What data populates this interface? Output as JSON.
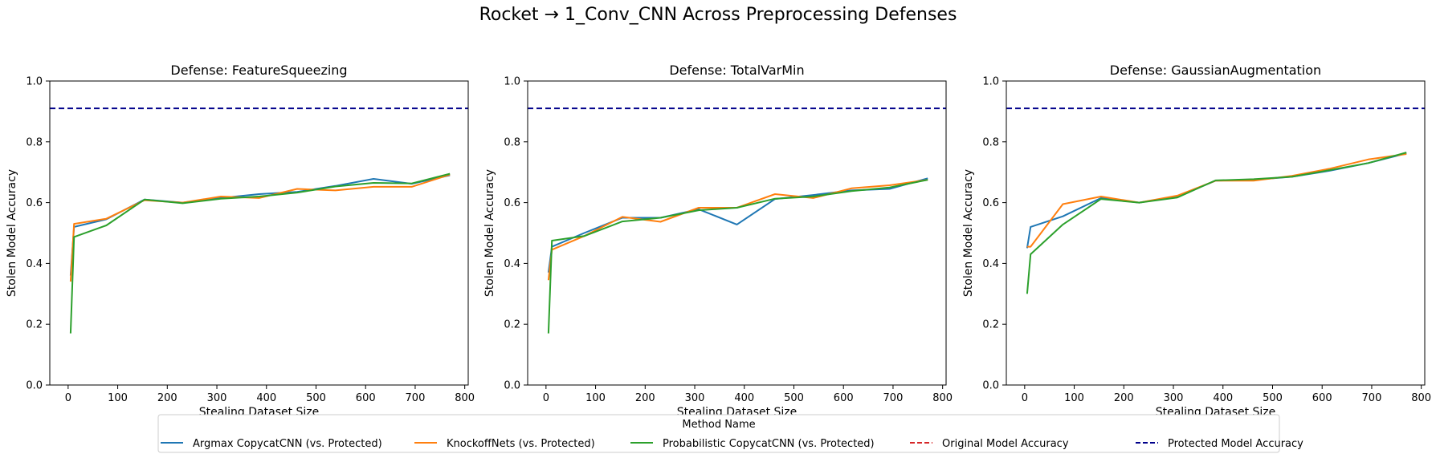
{
  "figure": {
    "title": "Rocket → 1_Conv_CNN Across Preprocessing Defenses"
  },
  "legend": {
    "title": "Method Name",
    "placement": "bottom-center",
    "entries": [
      {
        "label": "Argmax CopycatCNN (vs. Protected)",
        "color": "#1f77b4",
        "style": "solid"
      },
      {
        "label": "KnockoffNets (vs. Protected)",
        "color": "#ff7f0e",
        "style": "solid"
      },
      {
        "label": "Probabilistic CopycatCNN (vs. Protected)",
        "color": "#2ca02c",
        "style": "solid"
      },
      {
        "label": "Original Model Accuracy",
        "color": "#d62728",
        "style": "dashed"
      },
      {
        "label": "Protected Model Accuracy",
        "color": "#00008b",
        "style": "dashed"
      }
    ]
  },
  "chart_data": [
    {
      "type": "line",
      "title": "Defense: FeatureSqueezing",
      "xlabel": "Stealing Dataset Size",
      "ylabel": "Stolen Model Accuracy",
      "xlim": [
        -37,
        807
      ],
      "ylim": [
        0.0,
        1.0
      ],
      "xticks": [
        0,
        100,
        200,
        300,
        400,
        500,
        600,
        700,
        800
      ],
      "yticks": [
        0.0,
        0.2,
        0.4,
        0.6,
        0.8,
        1.0
      ],
      "grid": false,
      "hlines": [
        {
          "name": "Protected Model Accuracy",
          "y": 0.91,
          "color": "#00008b",
          "style": "dashed"
        }
      ],
      "series": [
        {
          "name": "Argmax CopycatCNN (vs. Protected)",
          "color": "#1f77b4",
          "x": [
            5,
            12,
            77,
            154,
            231,
            308,
            385,
            462,
            539,
            616,
            693,
            770
          ],
          "y": [
            0.36,
            0.52,
            0.545,
            0.61,
            0.6,
            0.615,
            0.628,
            0.635,
            0.655,
            0.678,
            0.662,
            0.69
          ]
        },
        {
          "name": "KnockoffNets (vs. Protected)",
          "color": "#ff7f0e",
          "x": [
            5,
            12,
            77,
            154,
            231,
            308,
            385,
            462,
            539,
            616,
            693,
            770
          ],
          "y": [
            0.34,
            0.53,
            0.547,
            0.608,
            0.6,
            0.62,
            0.615,
            0.645,
            0.64,
            0.652,
            0.652,
            0.692
          ]
        },
        {
          "name": "Probabilistic CopycatCNN (vs. Protected)",
          "color": "#2ca02c",
          "x": [
            5,
            12,
            77,
            154,
            231,
            308,
            385,
            462,
            539,
            616,
            693,
            770
          ],
          "y": [
            0.17,
            0.487,
            0.525,
            0.61,
            0.598,
            0.613,
            0.62,
            0.633,
            0.653,
            0.665,
            0.663,
            0.695
          ]
        }
      ]
    },
    {
      "type": "line",
      "title": "Defense: TotalVarMin",
      "xlabel": "Stealing Dataset Size",
      "ylabel": "Stolen Model Accuracy",
      "xlim": [
        -37,
        807
      ],
      "ylim": [
        0.0,
        1.0
      ],
      "xticks": [
        0,
        100,
        200,
        300,
        400,
        500,
        600,
        700,
        800
      ],
      "yticks": [
        0.0,
        0.2,
        0.4,
        0.6,
        0.8,
        1.0
      ],
      "grid": false,
      "hlines": [
        {
          "name": "Protected Model Accuracy",
          "y": 0.91,
          "color": "#00008b",
          "style": "dashed"
        }
      ],
      "series": [
        {
          "name": "Argmax CopycatCNN (vs. Protected)",
          "color": "#1f77b4",
          "x": [
            5,
            12,
            77,
            154,
            231,
            308,
            385,
            462,
            539,
            616,
            693,
            770
          ],
          "y": [
            0.37,
            0.455,
            0.5,
            0.55,
            0.55,
            0.578,
            0.528,
            0.612,
            0.625,
            0.64,
            0.645,
            0.68
          ]
        },
        {
          "name": "KnockoffNets (vs. Protected)",
          "color": "#ff7f0e",
          "x": [
            5,
            12,
            77,
            154,
            231,
            308,
            385,
            462,
            539,
            616,
            693,
            770
          ],
          "y": [
            0.345,
            0.445,
            0.49,
            0.553,
            0.537,
            0.583,
            0.583,
            0.628,
            0.615,
            0.647,
            0.657,
            0.675
          ]
        },
        {
          "name": "Probabilistic CopycatCNN (vs. Protected)",
          "color": "#2ca02c",
          "x": [
            5,
            12,
            77,
            154,
            231,
            308,
            385,
            462,
            539,
            616,
            693,
            770
          ],
          "y": [
            0.17,
            0.475,
            0.49,
            0.538,
            0.55,
            0.575,
            0.583,
            0.613,
            0.62,
            0.638,
            0.65,
            0.675
          ]
        }
      ]
    },
    {
      "type": "line",
      "title": "Defense: GaussianAugmentation",
      "xlabel": "Stealing Dataset Size",
      "ylabel": "Stolen Model Accuracy",
      "xlim": [
        -37,
        807
      ],
      "ylim": [
        0.0,
        1.0
      ],
      "xticks": [
        0,
        100,
        200,
        300,
        400,
        500,
        600,
        700,
        800
      ],
      "yticks": [
        0.0,
        0.2,
        0.4,
        0.6,
        0.8,
        1.0
      ],
      "grid": false,
      "hlines": [
        {
          "name": "Protected Model Accuracy",
          "y": 0.91,
          "color": "#00008b",
          "style": "dashed"
        }
      ],
      "series": [
        {
          "name": "Argmax CopycatCNN (vs. Protected)",
          "color": "#1f77b4",
          "x": [
            5,
            12,
            77,
            154,
            231,
            308,
            385,
            462,
            539,
            616,
            693,
            770
          ],
          "y": [
            0.45,
            0.52,
            0.555,
            0.615,
            0.6,
            0.62,
            0.672,
            0.675,
            0.685,
            0.705,
            0.73,
            0.762
          ]
        },
        {
          "name": "KnockoffNets (vs. Protected)",
          "color": "#ff7f0e",
          "x": [
            5,
            12,
            77,
            154,
            231,
            308,
            385,
            462,
            539,
            616,
            693,
            770
          ],
          "y": [
            0.455,
            0.455,
            0.595,
            0.62,
            0.6,
            0.623,
            0.672,
            0.672,
            0.688,
            0.712,
            0.742,
            0.76
          ]
        },
        {
          "name": "Probabilistic CopycatCNN (vs. Protected)",
          "color": "#2ca02c",
          "x": [
            5,
            12,
            77,
            154,
            231,
            308,
            385,
            462,
            539,
            616,
            693,
            770
          ],
          "y": [
            0.3,
            0.43,
            0.528,
            0.612,
            0.6,
            0.617,
            0.673,
            0.677,
            0.685,
            0.707,
            0.73,
            0.765
          ]
        }
      ]
    }
  ]
}
